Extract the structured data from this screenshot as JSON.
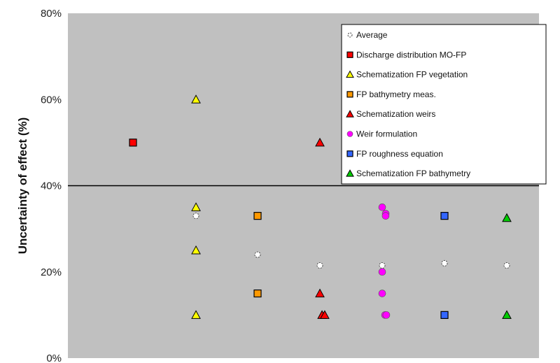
{
  "chart_data": {
    "type": "scatter",
    "title": "",
    "xlabel": "",
    "ylabel": "Uncertainty of effect (%)",
    "ylim": [
      0,
      80
    ],
    "y_ticks": [
      "0%",
      "20%",
      "40%",
      "60%",
      "80%"
    ],
    "x_categories": 7,
    "grid": false,
    "highlight_line_y": 40,
    "background_color": "#c0c0c0",
    "legend_position": "top-right",
    "series": [
      {
        "name": "Average",
        "marker": "circle-open",
        "color": "#ffffff",
        "points": [
          [
            2,
            33
          ],
          [
            3,
            24
          ],
          [
            4,
            21.5
          ],
          [
            5,
            21.5
          ],
          [
            6,
            22
          ],
          [
            7,
            21.5
          ]
        ]
      },
      {
        "name": "Discharge distribution MO-FP",
        "marker": "square",
        "color": "#ff0000",
        "points": [
          [
            1,
            50
          ]
        ]
      },
      {
        "name": "Schematization FP vegetation",
        "marker": "triangle",
        "color": "#ffff00",
        "points": [
          [
            2,
            60
          ],
          [
            2,
            35
          ],
          [
            2,
            25
          ],
          [
            2,
            10
          ]
        ]
      },
      {
        "name": "FP bathymetry meas.",
        "marker": "square",
        "color": "#ff9900",
        "points": [
          [
            3,
            33
          ],
          [
            3,
            15
          ]
        ]
      },
      {
        "name": "Schematization weirs",
        "marker": "triangle",
        "color": "#ff0000",
        "points": [
          [
            4,
            50
          ],
          [
            4,
            15
          ],
          [
            3.93,
            10
          ],
          [
            4.07,
            10
          ]
        ]
      },
      {
        "name": "Weir formulation",
        "marker": "circle",
        "color": "#ff00ff",
        "points": [
          [
            5,
            35
          ],
          [
            4.95,
            33.5
          ],
          [
            5.05,
            33
          ],
          [
            5,
            20
          ],
          [
            5,
            15
          ],
          [
            4.94,
            10
          ],
          [
            5.06,
            10
          ]
        ]
      },
      {
        "name": "FP roughness equation",
        "marker": "square",
        "color": "#3366ff",
        "points": [
          [
            6,
            33
          ],
          [
            6,
            10
          ]
        ]
      },
      {
        "name": "Schematization FP bathymetry",
        "marker": "triangle",
        "color": "#00cc00",
        "points": [
          [
            7,
            32.5
          ],
          [
            7,
            10
          ]
        ]
      }
    ]
  }
}
